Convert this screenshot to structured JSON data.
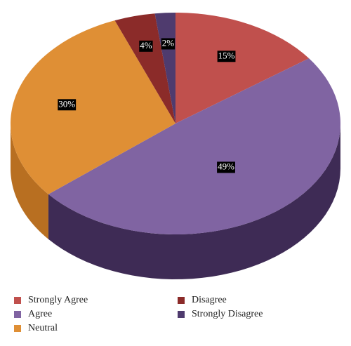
{
  "chart_data": {
    "type": "pie3d",
    "categories": [
      "Strongly Agree",
      "Agree",
      "Neutral",
      "Disagree",
      "Strongly Disagree"
    ],
    "values": [
      15,
      49,
      30,
      4,
      2
    ],
    "value_labels": [
      "15%",
      "49%",
      "30%",
      "4%",
      "2%"
    ],
    "colors": [
      "#c0504d",
      "#8064a2",
      "#df8f35",
      "#8b2b29",
      "#4f3b6e"
    ],
    "side_colors": [
      "#8e3432",
      "#3e2b55",
      "#b86f21",
      "#5e1c1b",
      "#2e2242"
    ]
  }
}
